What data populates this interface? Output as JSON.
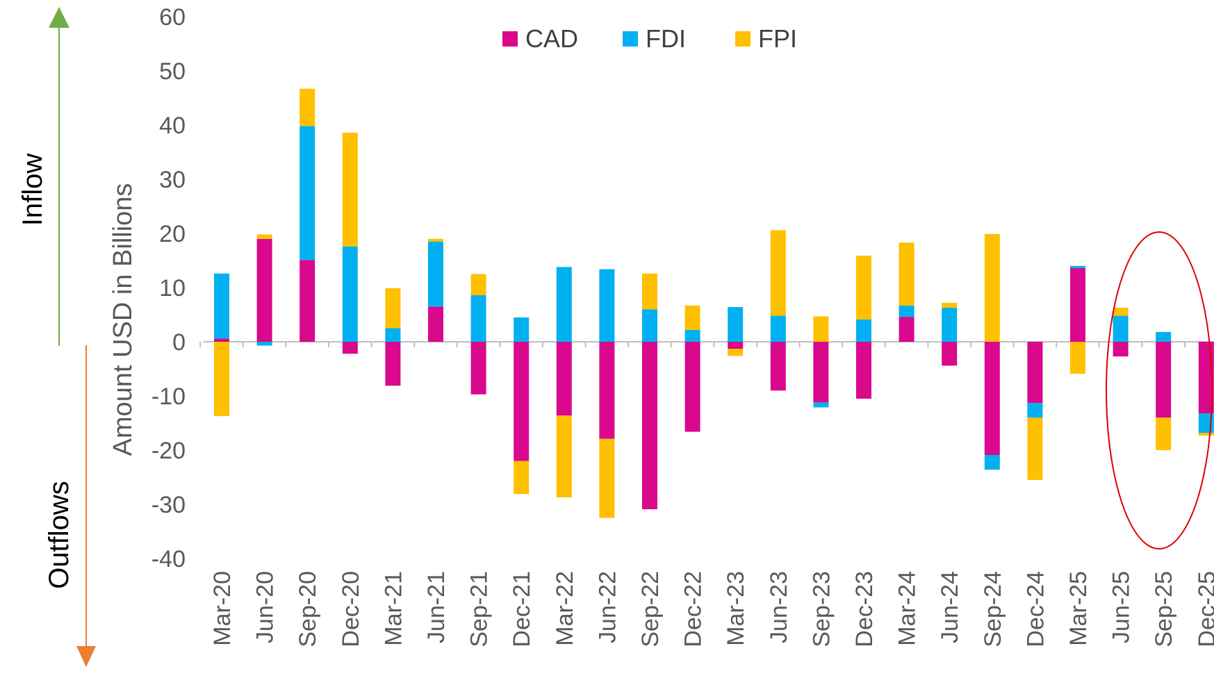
{
  "chart_data": {
    "type": "bar",
    "stacked": true,
    "ylabel": "Amount USD in Billions",
    "ylim": [
      -40,
      60
    ],
    "yticks": [
      60,
      50,
      40,
      30,
      20,
      10,
      0,
      -10,
      -20,
      -30,
      -40
    ],
    "legend_position": "top",
    "categories": [
      "Mar-20",
      "Jun-20",
      "Sep-20",
      "Dec-20",
      "Mar-21",
      "Jun-21",
      "Sep-21",
      "Dec-21",
      "Mar-22",
      "Jun-22",
      "Sep-22",
      "Dec-22",
      "Mar-23",
      "Jun-23",
      "Sep-23",
      "Dec-23",
      "Mar-24",
      "Jun-24",
      "Sep-24",
      "Dec-24",
      "Mar-25",
      "Jun-25",
      "Sep-25",
      "Dec-25"
    ],
    "series": [
      {
        "name": "CAD",
        "color": "#D9088C",
        "values": [
          0.6,
          19.0,
          15.1,
          -2.2,
          -8.1,
          6.5,
          -9.7,
          -22.0,
          -13.6,
          -17.9,
          -30.9,
          -16.6,
          -1.3,
          -9.0,
          -11.2,
          -10.5,
          4.6,
          -4.4,
          -20.9,
          -11.3,
          13.6,
          -2.7,
          -14.0,
          -13.2
        ]
      },
      {
        "name": "FDI",
        "color": "#00B0F0",
        "values": [
          12.0,
          -0.7,
          24.7,
          17.6,
          2.5,
          12.0,
          8.6,
          4.5,
          13.8,
          13.4,
          6.0,
          2.2,
          6.4,
          4.8,
          -0.9,
          4.1,
          2.1,
          6.3,
          -2.7,
          -2.7,
          0.4,
          4.8,
          1.8,
          -3.6
        ]
      },
      {
        "name": "FPI",
        "color": "#FFC000",
        "values": [
          -13.7,
          0.8,
          6.9,
          21.0,
          7.4,
          0.5,
          3.9,
          -6.1,
          -15.1,
          -14.6,
          6.6,
          4.5,
          -1.3,
          15.8,
          4.7,
          11.8,
          11.6,
          0.9,
          19.9,
          -11.5,
          -5.9,
          1.5,
          -6.0,
          -0.5
        ]
      }
    ],
    "annotations": {
      "inflow_label": "Inflow",
      "outflow_label": "Outflows",
      "inflow_arrow_color": "#70AD47",
      "outflow_arrow_color": "#ED7D31",
      "highlight_color": "#E00000",
      "highlight_categories": [
        "Sep-25",
        "Dec-25"
      ]
    }
  }
}
